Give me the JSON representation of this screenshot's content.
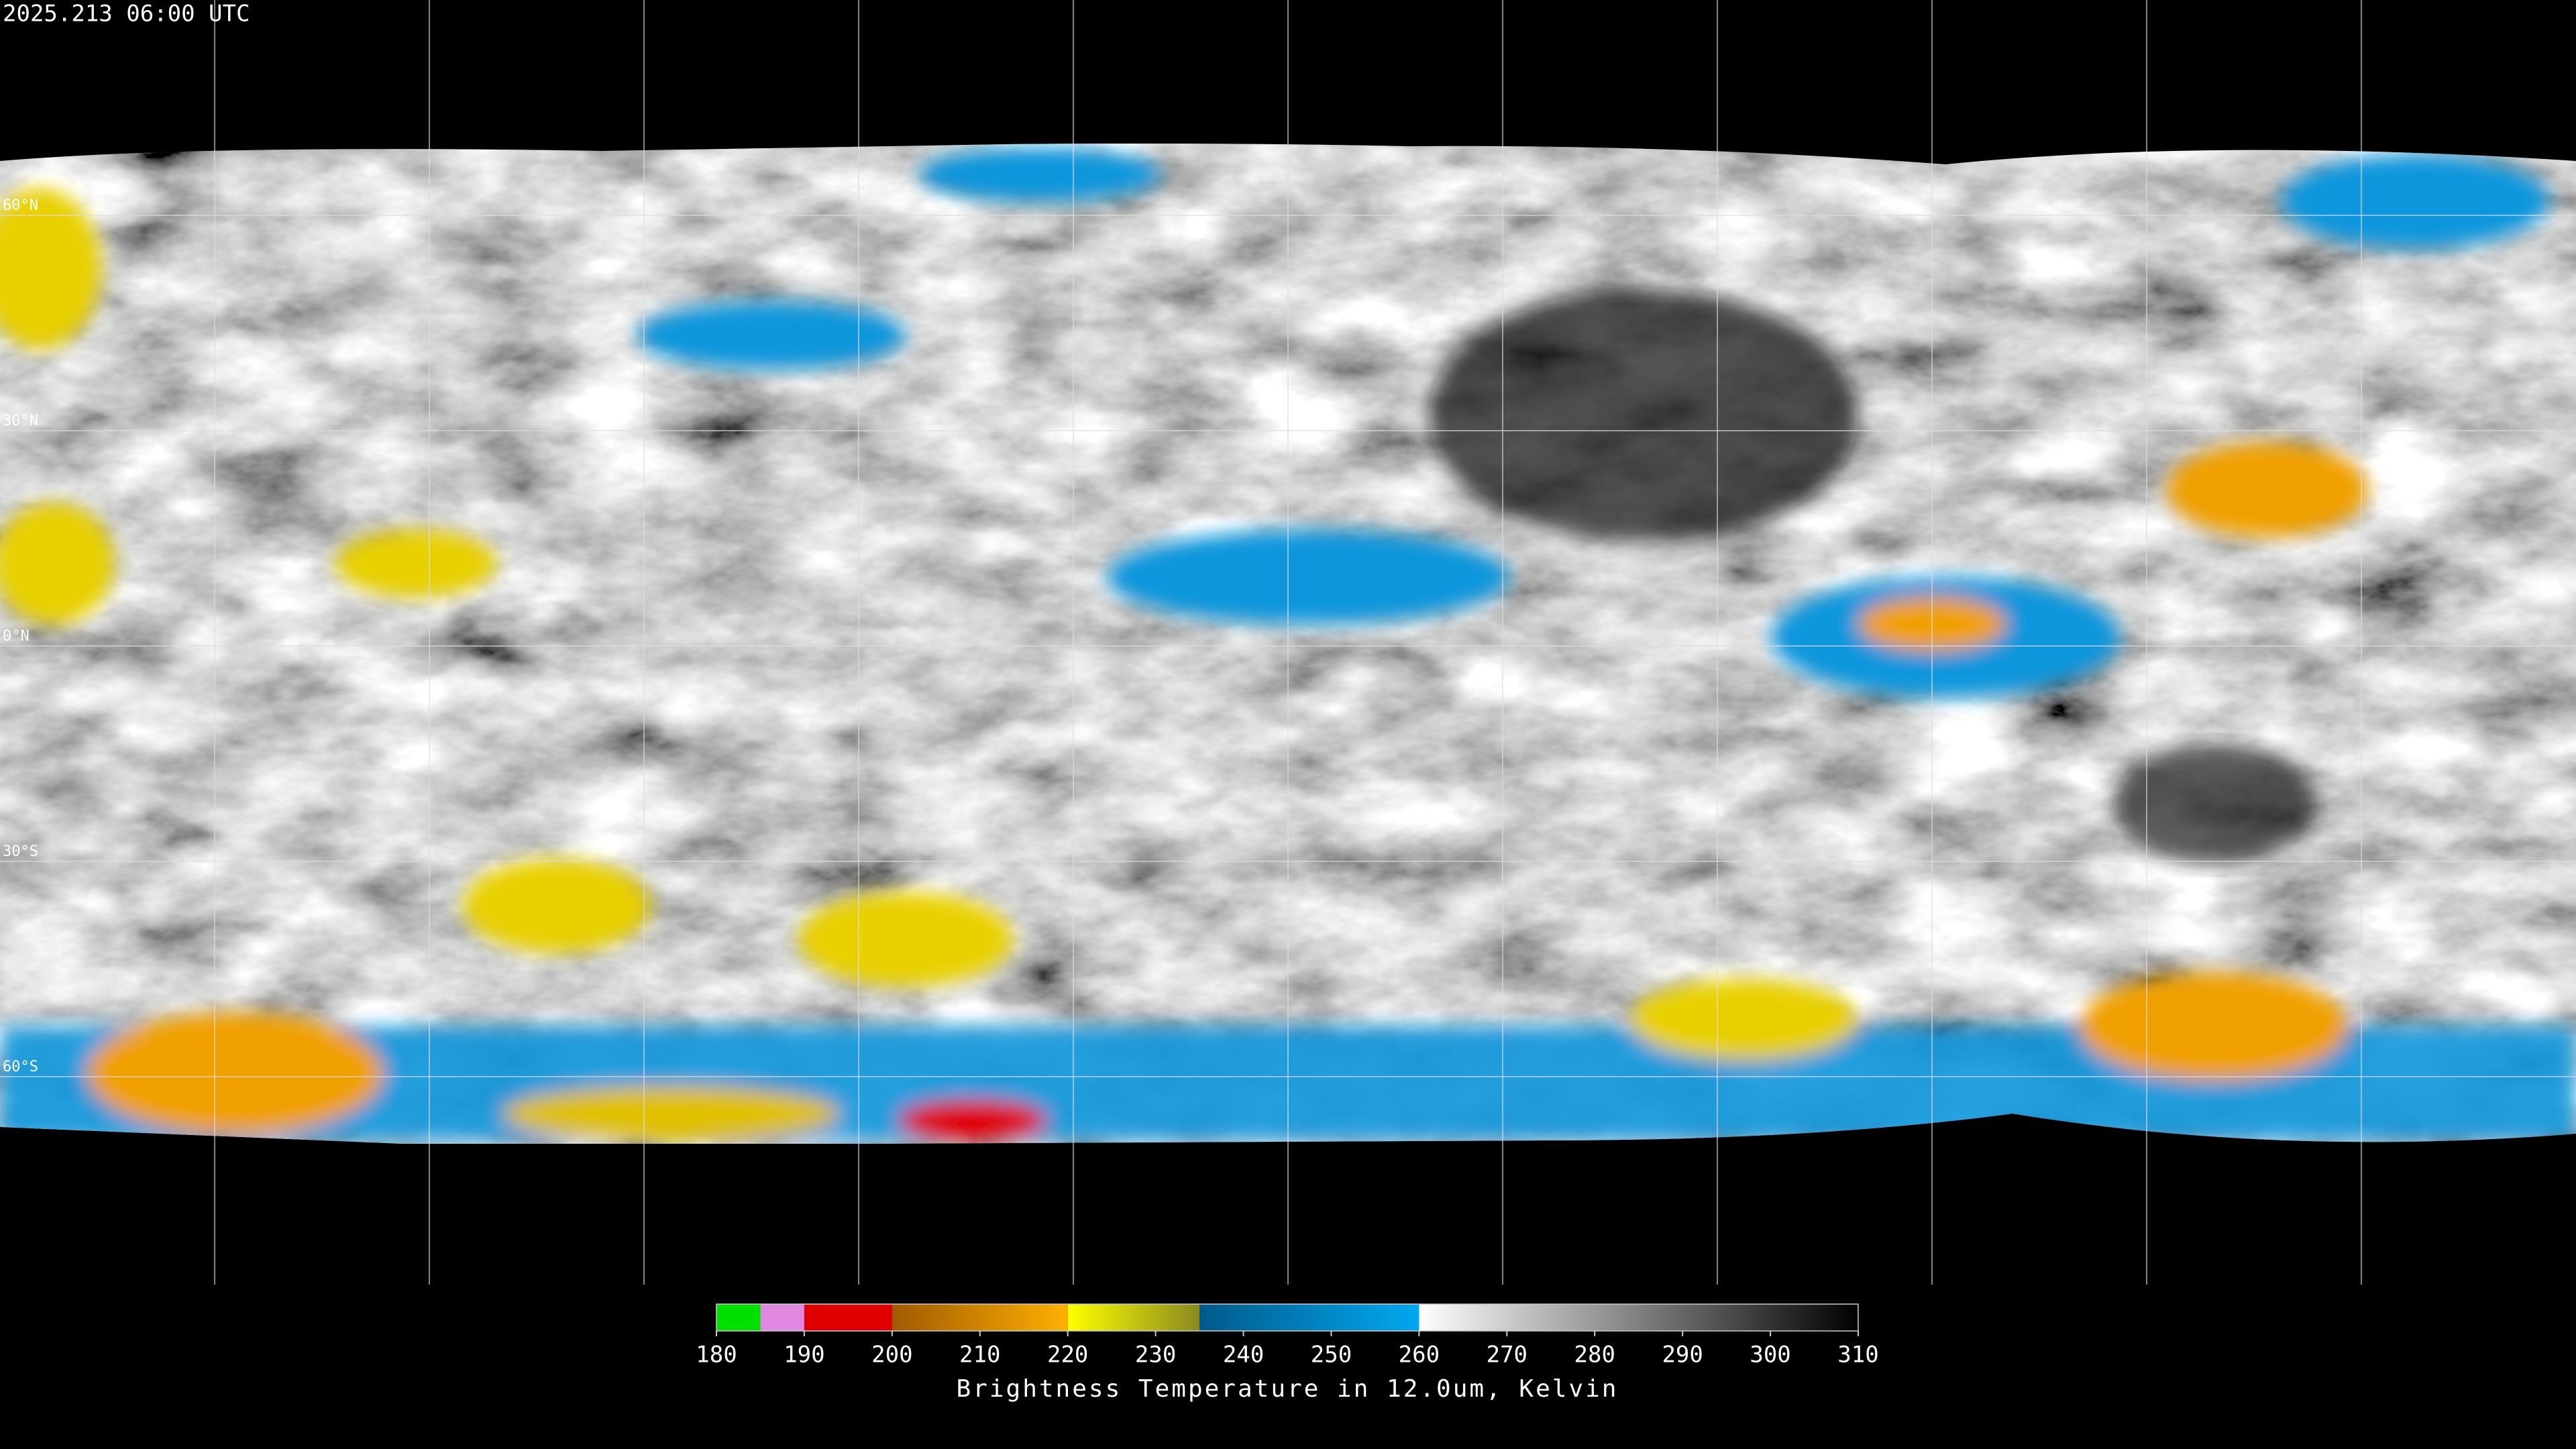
{
  "header": {
    "timestamp": "2025.213 06:00 UTC"
  },
  "map": {
    "lat_labels": [
      "60°N",
      "30°N",
      "0°N",
      "30°S",
      "60°S"
    ]
  },
  "colorbar": {
    "label": "Brightness Temperature in 12.0um, Kelvin",
    "range": [
      180,
      310
    ],
    "ticks": [
      180,
      190,
      200,
      210,
      220,
      230,
      240,
      250,
      260,
      270,
      280,
      290,
      300,
      310
    ],
    "segments": [
      {
        "from": 180,
        "to": 185,
        "colors": [
          "#00e000",
          "#00e000"
        ]
      },
      {
        "from": 185,
        "to": 190,
        "colors": [
          "#e088e0",
          "#e088e0"
        ]
      },
      {
        "from": 190,
        "to": 200,
        "colors": [
          "#e00000",
          "#e00000"
        ]
      },
      {
        "from": 200,
        "to": 220,
        "colors": [
          "#a05a00",
          "#ffb000"
        ]
      },
      {
        "from": 220,
        "to": 235,
        "colors": [
          "#ffff00",
          "#8a8a20"
        ]
      },
      {
        "from": 235,
        "to": 260,
        "colors": [
          "#005a8a",
          "#00a8f0"
        ]
      },
      {
        "from": 260,
        "to": 310,
        "colors": [
          "#ffffff",
          "#000000"
        ]
      }
    ]
  }
}
